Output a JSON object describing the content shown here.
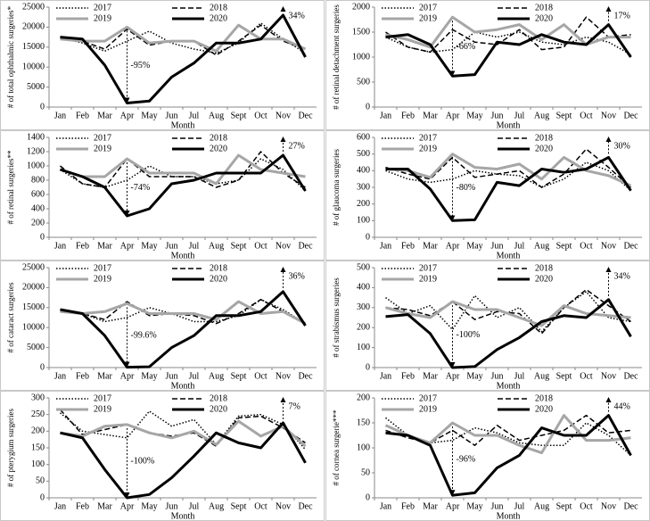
{
  "chart_data": [
    {
      "type": "line",
      "y_label": "# of total ophthalmic surgeries*",
      "x_label": "Month",
      "categories": [
        "Jan",
        "Feb",
        "Mar",
        "Apr",
        "May",
        "Jun",
        "Jul",
        "Aug",
        "Sept",
        "Oct",
        "Nov",
        "Dec"
      ],
      "ylim": [
        0,
        25000
      ],
      "yticks": [
        0,
        5000,
        10000,
        15000,
        20000,
        25000
      ],
      "legend": "top",
      "grid": false,
      "series": [
        {
          "name": "2017",
          "color": "#000000",
          "dash": "dotted",
          "values": [
            17500,
            16000,
            14000,
            16500,
            19000,
            16000,
            14500,
            13500,
            16000,
            21000,
            17000,
            13500
          ]
        },
        {
          "name": "2018",
          "color": "#000000",
          "dash": "dashed",
          "values": [
            17500,
            16500,
            14500,
            19500,
            15500,
            16500,
            16500,
            13000,
            16500,
            20500,
            16500,
            14500
          ]
        },
        {
          "name": "2019",
          "color": "#a6a6a6",
          "dash": "solid",
          "values": [
            17000,
            16500,
            16500,
            20000,
            16000,
            16500,
            16500,
            14000,
            20500,
            17000,
            17000,
            14500
          ]
        },
        {
          "name": "2020",
          "color": "#000000",
          "dash": "solid",
          "values": [
            17500,
            17000,
            10500,
            1000,
            1500,
            7500,
            11000,
            16000,
            16000,
            17000,
            23000,
            12500
          ]
        }
      ],
      "annotations": [
        {
          "text": "-95%"
        },
        {
          "text": "34%"
        }
      ]
    },
    {
      "type": "line",
      "y_label": "# of retinal detachment surgeries",
      "x_label": "Month",
      "categories": [
        "Jan",
        "Feb",
        "Mar",
        "Apr",
        "May",
        "Jun",
        "Jul",
        "Aug",
        "Sept",
        "Oct",
        "Nov",
        "Dec"
      ],
      "ylim": [
        0,
        2000
      ],
      "yticks": [
        0,
        500,
        1000,
        1500,
        2000
      ],
      "legend": "top",
      "grid": false,
      "series": [
        {
          "name": "2017",
          "color": "#000000",
          "dash": "dotted",
          "values": [
            1400,
            1200,
            1100,
            1150,
            1500,
            1400,
            1500,
            1300,
            1250,
            1400,
            1300,
            1050
          ]
        },
        {
          "name": "2018",
          "color": "#000000",
          "dash": "dashed",
          "values": [
            1500,
            1200,
            1100,
            1550,
            1300,
            1250,
            1550,
            1150,
            1200,
            1800,
            1400,
            1450
          ]
        },
        {
          "name": "2019",
          "color": "#a6a6a6",
          "dash": "solid",
          "values": [
            1450,
            1350,
            1200,
            1800,
            1500,
            1550,
            1650,
            1350,
            1650,
            1250,
            1400,
            1400
          ]
        },
        {
          "name": "2020",
          "color": "#000000",
          "dash": "solid",
          "values": [
            1400,
            1450,
            1250,
            620,
            650,
            1300,
            1250,
            1450,
            1300,
            1250,
            1650,
            1000
          ]
        }
      ],
      "annotations": [
        {
          "text": "-66%"
        },
        {
          "text": "17%"
        }
      ]
    },
    {
      "type": "line",
      "y_label": "# of retinal surgeries**",
      "x_label": "Month",
      "categories": [
        "Jan",
        "Feb",
        "Mar",
        "Apr",
        "May",
        "Jun",
        "Jul",
        "Aug",
        "Sept",
        "Oct",
        "Nov",
        "Dec"
      ],
      "ylim": [
        0,
        1400
      ],
      "yticks": [
        0,
        200,
        400,
        600,
        800,
        1000,
        1200,
        1400
      ],
      "legend": "top",
      "grid": false,
      "series": [
        {
          "name": "2017",
          "color": "#000000",
          "dash": "dotted",
          "values": [
            950,
            750,
            700,
            800,
            1000,
            850,
            850,
            750,
            800,
            1100,
            950,
            650
          ]
        },
        {
          "name": "2018",
          "color": "#000000",
          "dash": "dashed",
          "values": [
            1000,
            750,
            700,
            1100,
            850,
            850,
            850,
            700,
            800,
            1200,
            900,
            700
          ]
        },
        {
          "name": "2019",
          "color": "#a6a6a6",
          "dash": "solid",
          "values": [
            950,
            850,
            850,
            1100,
            900,
            900,
            900,
            750,
            1150,
            950,
            900,
            850
          ]
        },
        {
          "name": "2020",
          "color": "#000000",
          "dash": "solid",
          "values": [
            950,
            850,
            700,
            300,
            400,
            750,
            800,
            900,
            900,
            900,
            1150,
            650
          ]
        }
      ],
      "annotations": [
        {
          "text": "-74%"
        },
        {
          "text": "27%"
        }
      ]
    },
    {
      "type": "line",
      "y_label": "# of glaucoma surgeries",
      "x_label": "Month",
      "categories": [
        "Jan",
        "Feb",
        "Mar",
        "Apr",
        "May",
        "Jun",
        "Jul",
        "Aug",
        "Sept",
        "Oct",
        "Nov",
        "Dec"
      ],
      "ylim": [
        0,
        600
      ],
      "yticks": [
        0,
        100,
        200,
        300,
        400,
        500,
        600
      ],
      "legend": "top",
      "grid": false,
      "series": [
        {
          "name": "2017",
          "color": "#000000",
          "dash": "dotted",
          "values": [
            400,
            350,
            330,
            350,
            400,
            380,
            370,
            300,
            350,
            450,
            400,
            280
          ]
        },
        {
          "name": "2018",
          "color": "#000000",
          "dash": "dashed",
          "values": [
            420,
            380,
            350,
            480,
            360,
            380,
            400,
            300,
            380,
            530,
            420,
            300
          ]
        },
        {
          "name": "2019",
          "color": "#a6a6a6",
          "dash": "solid",
          "values": [
            410,
            400,
            360,
            500,
            420,
            410,
            440,
            350,
            480,
            400,
            370,
            310
          ]
        },
        {
          "name": "2020",
          "color": "#000000",
          "dash": "solid",
          "values": [
            410,
            410,
            290,
            100,
            105,
            330,
            310,
            410,
            390,
            410,
            480,
            280
          ]
        }
      ],
      "annotations": [
        {
          "text": "-80%"
        },
        {
          "text": "30%"
        }
      ]
    },
    {
      "type": "line",
      "y_label": "# of cataract surgeries",
      "x_label": "Month",
      "categories": [
        "Jan",
        "Feb",
        "Mar",
        "Apr",
        "May",
        "Jun",
        "Jul",
        "Aug",
        "Sept",
        "Oct",
        "Nov",
        "Dec"
      ],
      "ylim": [
        0,
        25000
      ],
      "yticks": [
        0,
        5000,
        10000,
        15000,
        20000,
        25000
      ],
      "legend": "top",
      "grid": false,
      "series": [
        {
          "name": "2017",
          "color": "#000000",
          "dash": "dotted",
          "values": [
            14500,
            13500,
            11500,
            12500,
            15000,
            13500,
            11500,
            11500,
            13000,
            17000,
            14500,
            11000
          ]
        },
        {
          "name": "2018",
          "color": "#000000",
          "dash": "dashed",
          "values": [
            14500,
            13500,
            12000,
            16500,
            13000,
            13500,
            13000,
            11000,
            13500,
            17000,
            14000,
            11000
          ]
        },
        {
          "name": "2019",
          "color": "#a6a6a6",
          "dash": "solid",
          "values": [
            14000,
            13500,
            14000,
            16000,
            13500,
            13500,
            13500,
            12000,
            16500,
            13500,
            14000,
            11000
          ]
        },
        {
          "name": "2020",
          "color": "#000000",
          "dash": "solid",
          "values": [
            14500,
            13500,
            8000,
            100,
            200,
            5000,
            8000,
            13000,
            13000,
            14000,
            19000,
            10500
          ]
        }
      ],
      "annotations": [
        {
          "text": "-99.6%"
        },
        {
          "text": "36%"
        }
      ]
    },
    {
      "type": "line",
      "y_label": "# of strabismus surgeries",
      "x_label": "Month",
      "categories": [
        "Jan",
        "Feb",
        "Mar",
        "Apr",
        "May",
        "Jun",
        "Jul",
        "Aug",
        "Sept",
        "Oct",
        "Nov",
        "Dec"
      ],
      "ylim": [
        0,
        500
      ],
      "yticks": [
        0,
        100,
        200,
        300,
        400,
        500
      ],
      "legend": "top",
      "grid": false,
      "series": [
        {
          "name": "2017",
          "color": "#000000",
          "dash": "dotted",
          "values": [
            350,
            270,
            310,
            190,
            360,
            250,
            300,
            180,
            300,
            380,
            250,
            230
          ]
        },
        {
          "name": "2018",
          "color": "#000000",
          "dash": "dashed",
          "values": [
            300,
            290,
            260,
            330,
            240,
            280,
            270,
            170,
            300,
            390,
            310,
            230
          ]
        },
        {
          "name": "2019",
          "color": "#a6a6a6",
          "dash": "solid",
          "values": [
            300,
            270,
            250,
            330,
            290,
            290,
            250,
            210,
            310,
            270,
            260,
            250
          ]
        },
        {
          "name": "2020",
          "color": "#000000",
          "dash": "solid",
          "values": [
            255,
            265,
            170,
            0,
            5,
            90,
            150,
            230,
            260,
            250,
            340,
            155
          ]
        }
      ],
      "annotations": [
        {
          "text": "-100%"
        },
        {
          "text": "34%"
        }
      ]
    },
    {
      "type": "line",
      "y_label": "# of pterygium surgeries",
      "x_label": "Month",
      "categories": [
        "Jan",
        "Feb",
        "Mar",
        "Apr",
        "May",
        "Jun",
        "Jul",
        "Aug",
        "Sept",
        "Oct",
        "Nov",
        "Dec"
      ],
      "ylim": [
        0,
        300
      ],
      "yticks": [
        0,
        50,
        100,
        150,
        200,
        250,
        300
      ],
      "legend": "top",
      "grid": false,
      "series": [
        {
          "name": "2017",
          "color": "#000000",
          "dash": "dotted",
          "values": [
            255,
            200,
            190,
            180,
            260,
            215,
            235,
            160,
            245,
            250,
            220,
            145
          ]
        },
        {
          "name": "2018",
          "color": "#000000",
          "dash": "dashed",
          "values": [
            265,
            190,
            205,
            220,
            195,
            185,
            195,
            155,
            240,
            245,
            210,
            165
          ]
        },
        {
          "name": "2019",
          "color": "#a6a6a6",
          "dash": "solid",
          "values": [
            195,
            185,
            215,
            220,
            195,
            180,
            200,
            160,
            230,
            185,
            215,
            155
          ]
        },
        {
          "name": "2020",
          "color": "#000000",
          "dash": "solid",
          "values": [
            195,
            180,
            85,
            0,
            10,
            60,
            125,
            195,
            165,
            150,
            225,
            105
          ]
        }
      ],
      "annotations": [
        {
          "text": "-100%"
        },
        {
          "text": "7%"
        }
      ]
    },
    {
      "type": "line",
      "y_label": "# of cornea surgerie***",
      "x_label": "Month",
      "categories": [
        "Jan",
        "Feb",
        "Mar",
        "Apr",
        "May",
        "Jun",
        "Jul",
        "Aug",
        "Sept",
        "Oct",
        "Nov",
        "Dec"
      ],
      "ylim": [
        0,
        200
      ],
      "yticks": [
        0,
        50,
        100,
        150,
        200
      ],
      "legend": "top",
      "grid": false,
      "series": [
        {
          "name": "2017",
          "color": "#000000",
          "dash": "dotted",
          "values": [
            160,
            125,
            110,
            115,
            140,
            130,
            110,
            105,
            105,
            150,
            125,
            85
          ]
        },
        {
          "name": "2018",
          "color": "#000000",
          "dash": "dashed",
          "values": [
            135,
            120,
            110,
            135,
            105,
            145,
            115,
            125,
            135,
            165,
            130,
            135
          ]
        },
        {
          "name": "2019",
          "color": "#a6a6a6",
          "dash": "solid",
          "values": [
            145,
            125,
            110,
            150,
            125,
            125,
            105,
            90,
            165,
            115,
            115,
            120
          ]
        },
        {
          "name": "2020",
          "color": "#000000",
          "dash": "solid",
          "values": [
            130,
            125,
            105,
            5,
            10,
            60,
            85,
            140,
            125,
            125,
            165,
            85
          ]
        }
      ],
      "annotations": [
        {
          "text": "-96%"
        },
        {
          "text": "44%"
        }
      ]
    }
  ]
}
